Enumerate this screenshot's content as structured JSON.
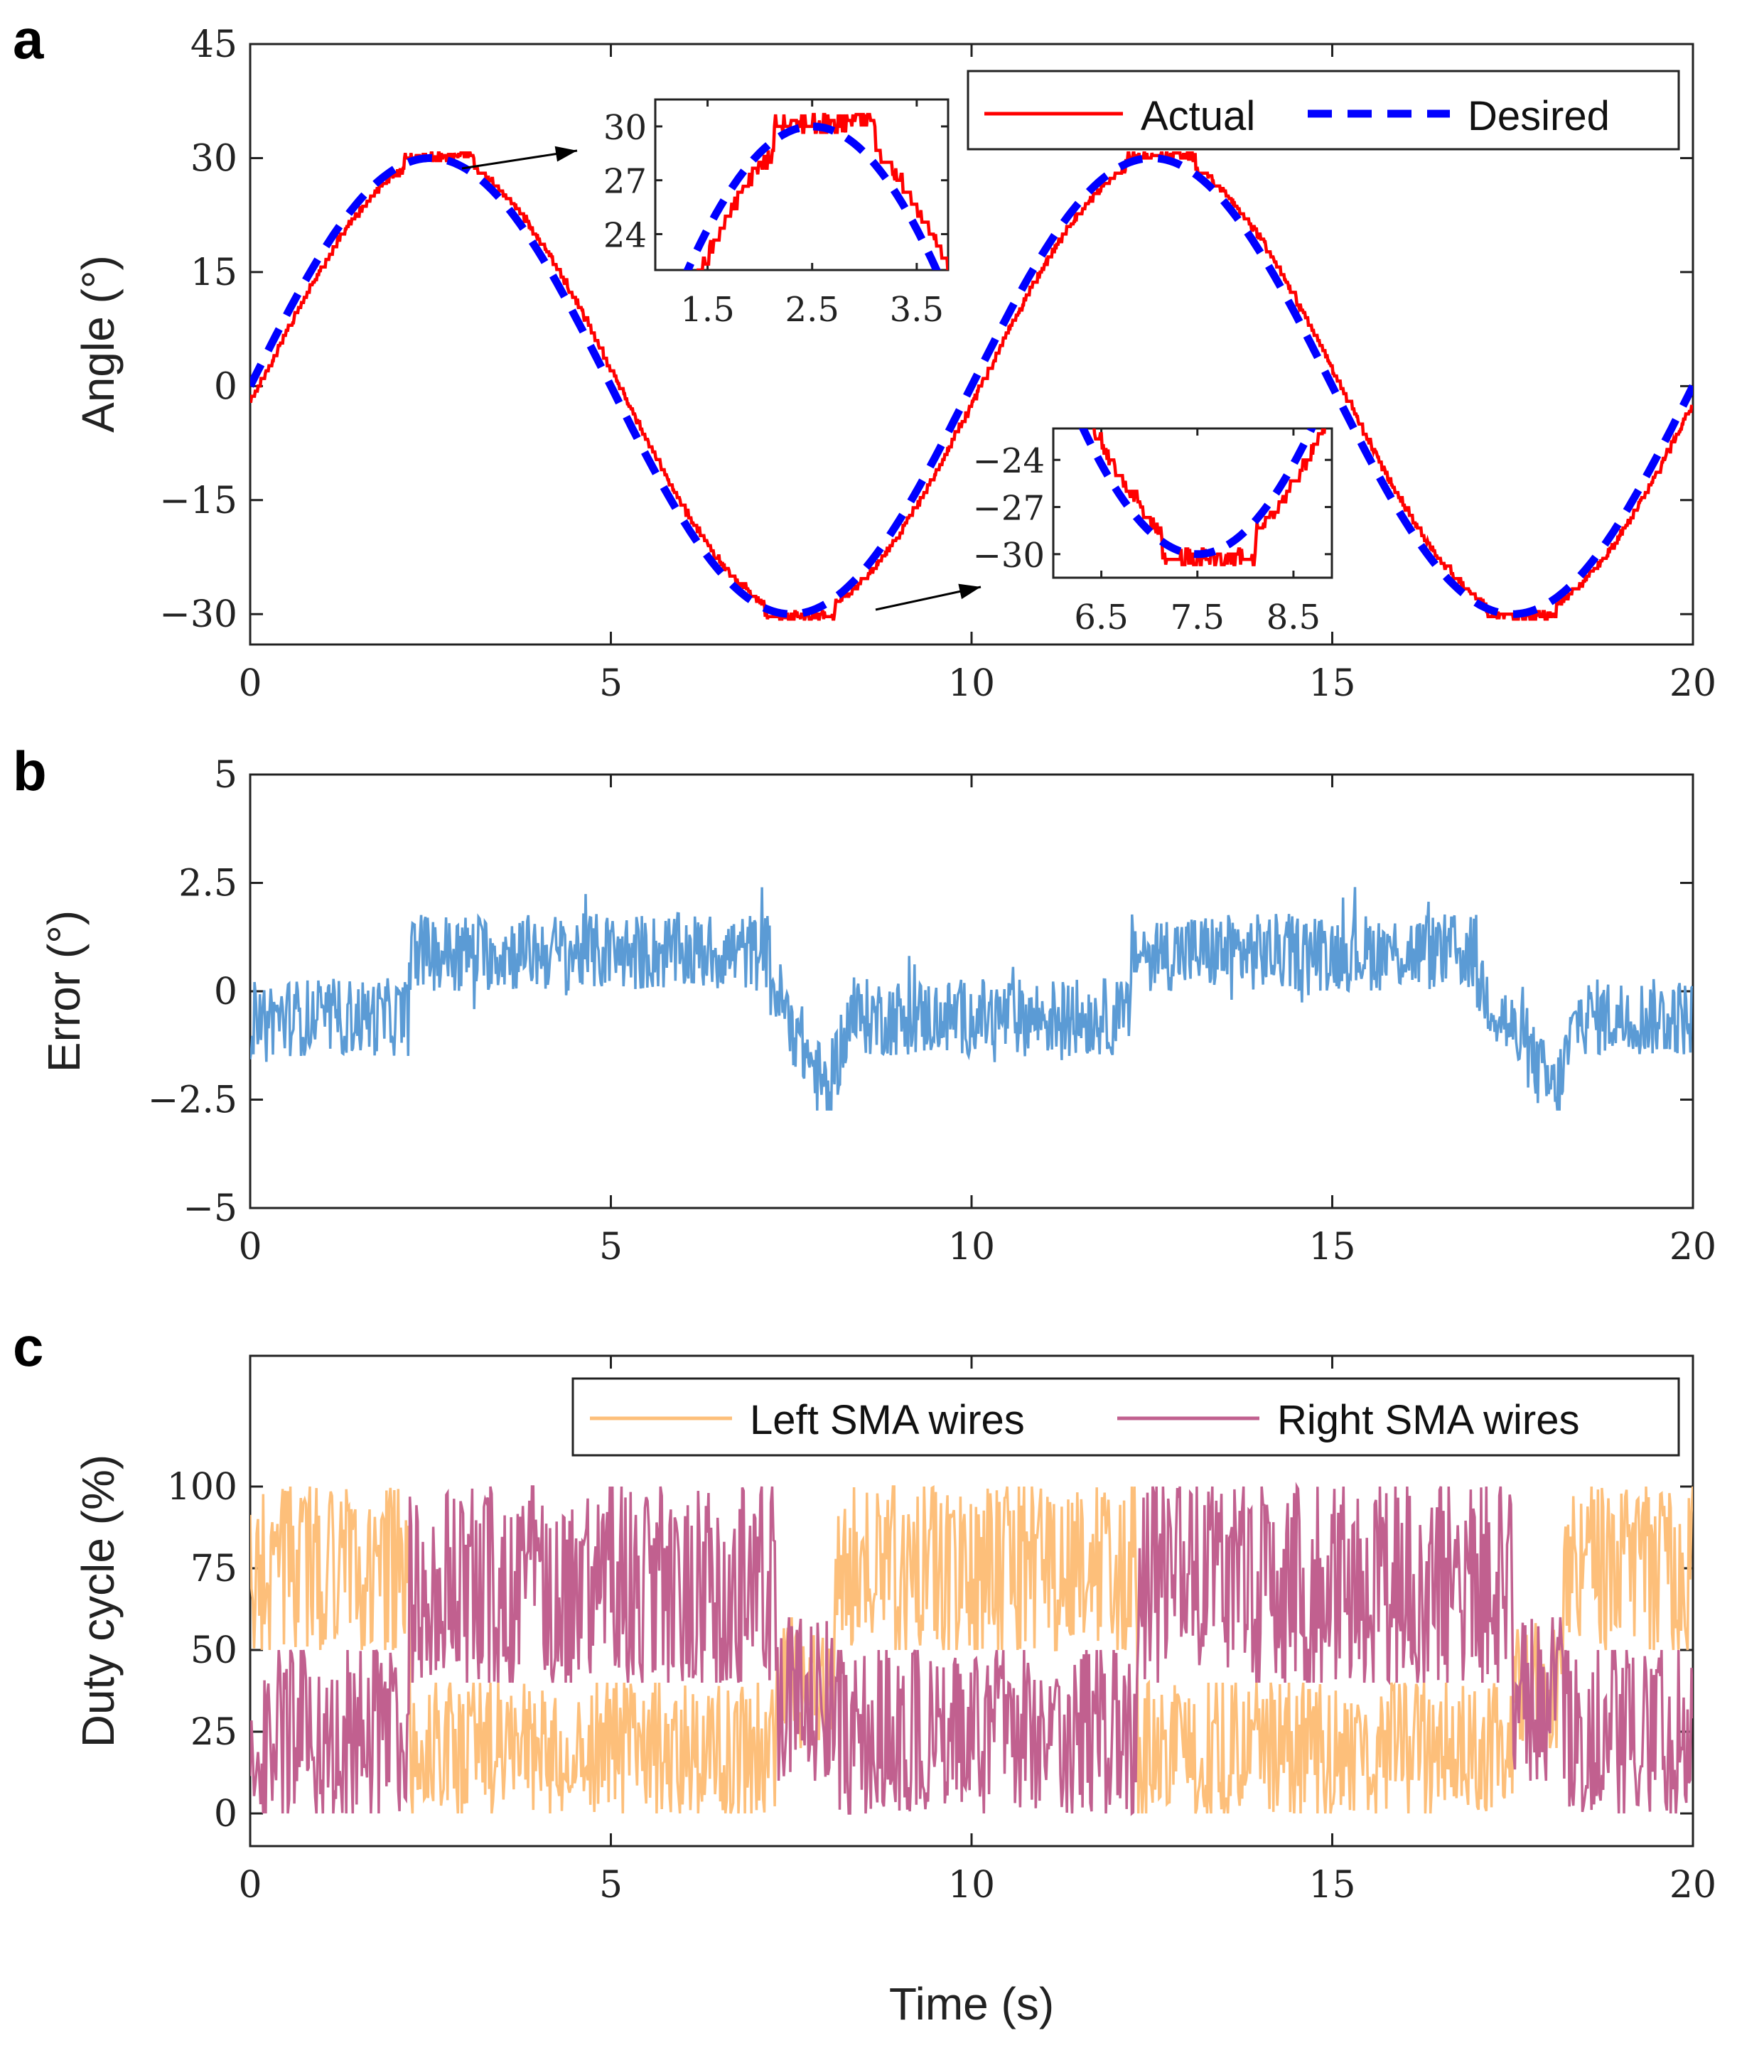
{
  "chart_data": [
    {
      "panel": "a",
      "type": "line",
      "ylabel": "Angle (°)",
      "xlabel": "",
      "xlim": [
        0,
        20
      ],
      "ylim": [
        -34,
        45
      ],
      "xticks": [
        0,
        5,
        10,
        15,
        20
      ],
      "xtick_labels": [
        "0",
        "5",
        "10",
        "15",
        "20"
      ],
      "yticks": [
        45,
        30,
        15,
        0,
        -15,
        -30
      ],
      "ytick_labels": [
        "45",
        "30",
        "15",
        "0",
        "−15",
        "−30"
      ],
      "legend": {
        "position": "top-right",
        "entries": [
          "Actual",
          "Desired"
        ]
      },
      "series": [
        {
          "name": "Actual",
          "color": "#ff0000",
          "style": "solid",
          "description": "Measured angle following desired sinusoid with small stepwise deviations",
          "x": [
            0,
            1.25,
            2.5,
            3.75,
            5,
            6.25,
            7.5,
            8.0,
            8.75,
            10,
            11.25,
            12.5,
            13.75,
            15,
            16.25,
            17.5,
            18.0,
            18.75,
            20
          ],
          "y": [
            0,
            21.3,
            30.5,
            21.6,
            0,
            -21.0,
            -30.2,
            -30.3,
            -21.0,
            0,
            21.5,
            30.2,
            22.0,
            0,
            -21.3,
            -30.0,
            -30.2,
            -21.2,
            0
          ]
        },
        {
          "name": "Desired",
          "color": "#0000ff",
          "style": "dashed",
          "description": "30·sin(2π·t/10)",
          "x": [
            0,
            1.25,
            2.5,
            3.75,
            5,
            6.25,
            7.5,
            8.75,
            10,
            11.25,
            12.5,
            13.75,
            15,
            16.25,
            17.5,
            18.75,
            20
          ],
          "y": [
            0,
            21.21,
            30,
            21.21,
            0,
            -21.21,
            -30,
            -21.21,
            0,
            21.21,
            30,
            21.21,
            0,
            -21.21,
            -30,
            -21.21,
            0
          ]
        }
      ],
      "insets": [
        {
          "xlim": [
            1.0,
            3.8
          ],
          "ylim": [
            22,
            31.5
          ],
          "xticks": [
            1.5,
            2.5,
            3.5
          ],
          "xtick_labels": [
            "1.5",
            "2.5",
            "3.5"
          ],
          "yticks": [
            30,
            27,
            24
          ],
          "ytick_labels": [
            "30",
            "27",
            "24"
          ]
        },
        {
          "xlim": [
            6.0,
            8.9
          ],
          "ylim": [
            -31.5,
            -22
          ],
          "xticks": [
            6.5,
            7.5,
            8.5
          ],
          "xtick_labels": [
            "6.5",
            "7.5",
            "8.5"
          ],
          "yticks": [
            -24,
            -27,
            -30
          ],
          "ytick_labels": [
            "−24",
            "−27",
            "−30"
          ]
        }
      ]
    },
    {
      "panel": "b",
      "type": "line",
      "ylabel": "Error (°)",
      "xlabel": "",
      "xlim": [
        0,
        20
      ],
      "ylim": [
        -5,
        5
      ],
      "xticks": [
        0,
        5,
        10,
        15,
        20
      ],
      "xtick_labels": [
        "0",
        "5",
        "10",
        "15",
        "20"
      ],
      "yticks": [
        5,
        2.5,
        0,
        -2.5,
        -5
      ],
      "ytick_labels": [
        "5",
        "2.5",
        "0",
        "−2.5",
        "−5"
      ],
      "series": [
        {
          "name": "Error",
          "color": "#5b9bd5",
          "description": "Noisy tracking error; around -0.6 from 0–2.2 s, +0.9 from 2.2–7.2 s, dip to -2.7 near 8 s, -0.6 from 8–12.2 s, +0.9 from 12.2–17 s, dip to -2.6 near 18 s",
          "x": [
            0,
            2.2,
            2.3,
            5,
            7.2,
            7.3,
            8.0,
            8.3,
            10,
            12.2,
            12.3,
            15,
            17.0,
            18.1,
            18.4,
            20
          ],
          "y": [
            -0.6,
            -0.6,
            0.9,
            0.9,
            0.9,
            -0.5,
            -2.5,
            -0.6,
            -0.6,
            -0.6,
            0.9,
            0.9,
            0.7,
            -2.4,
            -0.6,
            -0.6
          ]
        }
      ]
    },
    {
      "panel": "c",
      "type": "line",
      "ylabel": "Duty cycle (%)",
      "xlabel": "Time (s)",
      "xlim": [
        0,
        20
      ],
      "ylim": [
        -10,
        140
      ],
      "xticks": [
        0,
        5,
        10,
        15,
        20
      ],
      "xtick_labels": [
        "0",
        "5",
        "10",
        "15",
        "20"
      ],
      "yticks": [
        100,
        75,
        50,
        25,
        0
      ],
      "ytick_labels": [
        "100",
        "75",
        "50",
        "25",
        "0"
      ],
      "legend": {
        "position": "top-right",
        "entries": [
          "Left SMA wires",
          "Right SMA wires"
        ]
      },
      "series": [
        {
          "name": "Left SMA wires",
          "color": "#fdbf7a",
          "description": "Complementary PWM duty; high band (50–100) when error negative, low band (0–40) when error positive",
          "band_low": [
            [
              0,
              2.2,
              50
            ],
            [
              2.2,
              7.3,
              0
            ],
            [
              7.3,
              8.1,
              20
            ],
            [
              8.1,
              12.3,
              50
            ],
            [
              12.3,
              17.5,
              0
            ],
            [
              17.5,
              18.2,
              20
            ],
            [
              18.2,
              20,
              50
            ]
          ],
          "band_high": [
            [
              0,
              2.2,
              100
            ],
            [
              2.2,
              7.3,
              40
            ],
            [
              7.3,
              8.1,
              60
            ],
            [
              8.1,
              12.3,
              100
            ],
            [
              12.3,
              17.5,
              40
            ],
            [
              17.5,
              18.2,
              60
            ],
            [
              18.2,
              20,
              100
            ]
          ]
        },
        {
          "name": "Right SMA wires",
          "color": "#c1608f",
          "description": "Complementary PWM duty; high band (50–100) when error positive, low band (0–50) when error negative",
          "band_low": [
            [
              0,
              2.2,
              0
            ],
            [
              2.2,
              7.3,
              40
            ],
            [
              7.3,
              8.1,
              10
            ],
            [
              8.1,
              12.3,
              0
            ],
            [
              12.3,
              17.5,
              40
            ],
            [
              17.5,
              18.2,
              10
            ],
            [
              18.2,
              20,
              0
            ]
          ],
          "band_high": [
            [
              0,
              2.2,
              50
            ],
            [
              2.2,
              7.3,
              100
            ],
            [
              7.3,
              8.1,
              60
            ],
            [
              8.1,
              12.3,
              50
            ],
            [
              12.3,
              17.5,
              100
            ],
            [
              17.5,
              18.2,
              60
            ],
            [
              18.2,
              20,
              50
            ]
          ]
        }
      ]
    }
  ]
}
